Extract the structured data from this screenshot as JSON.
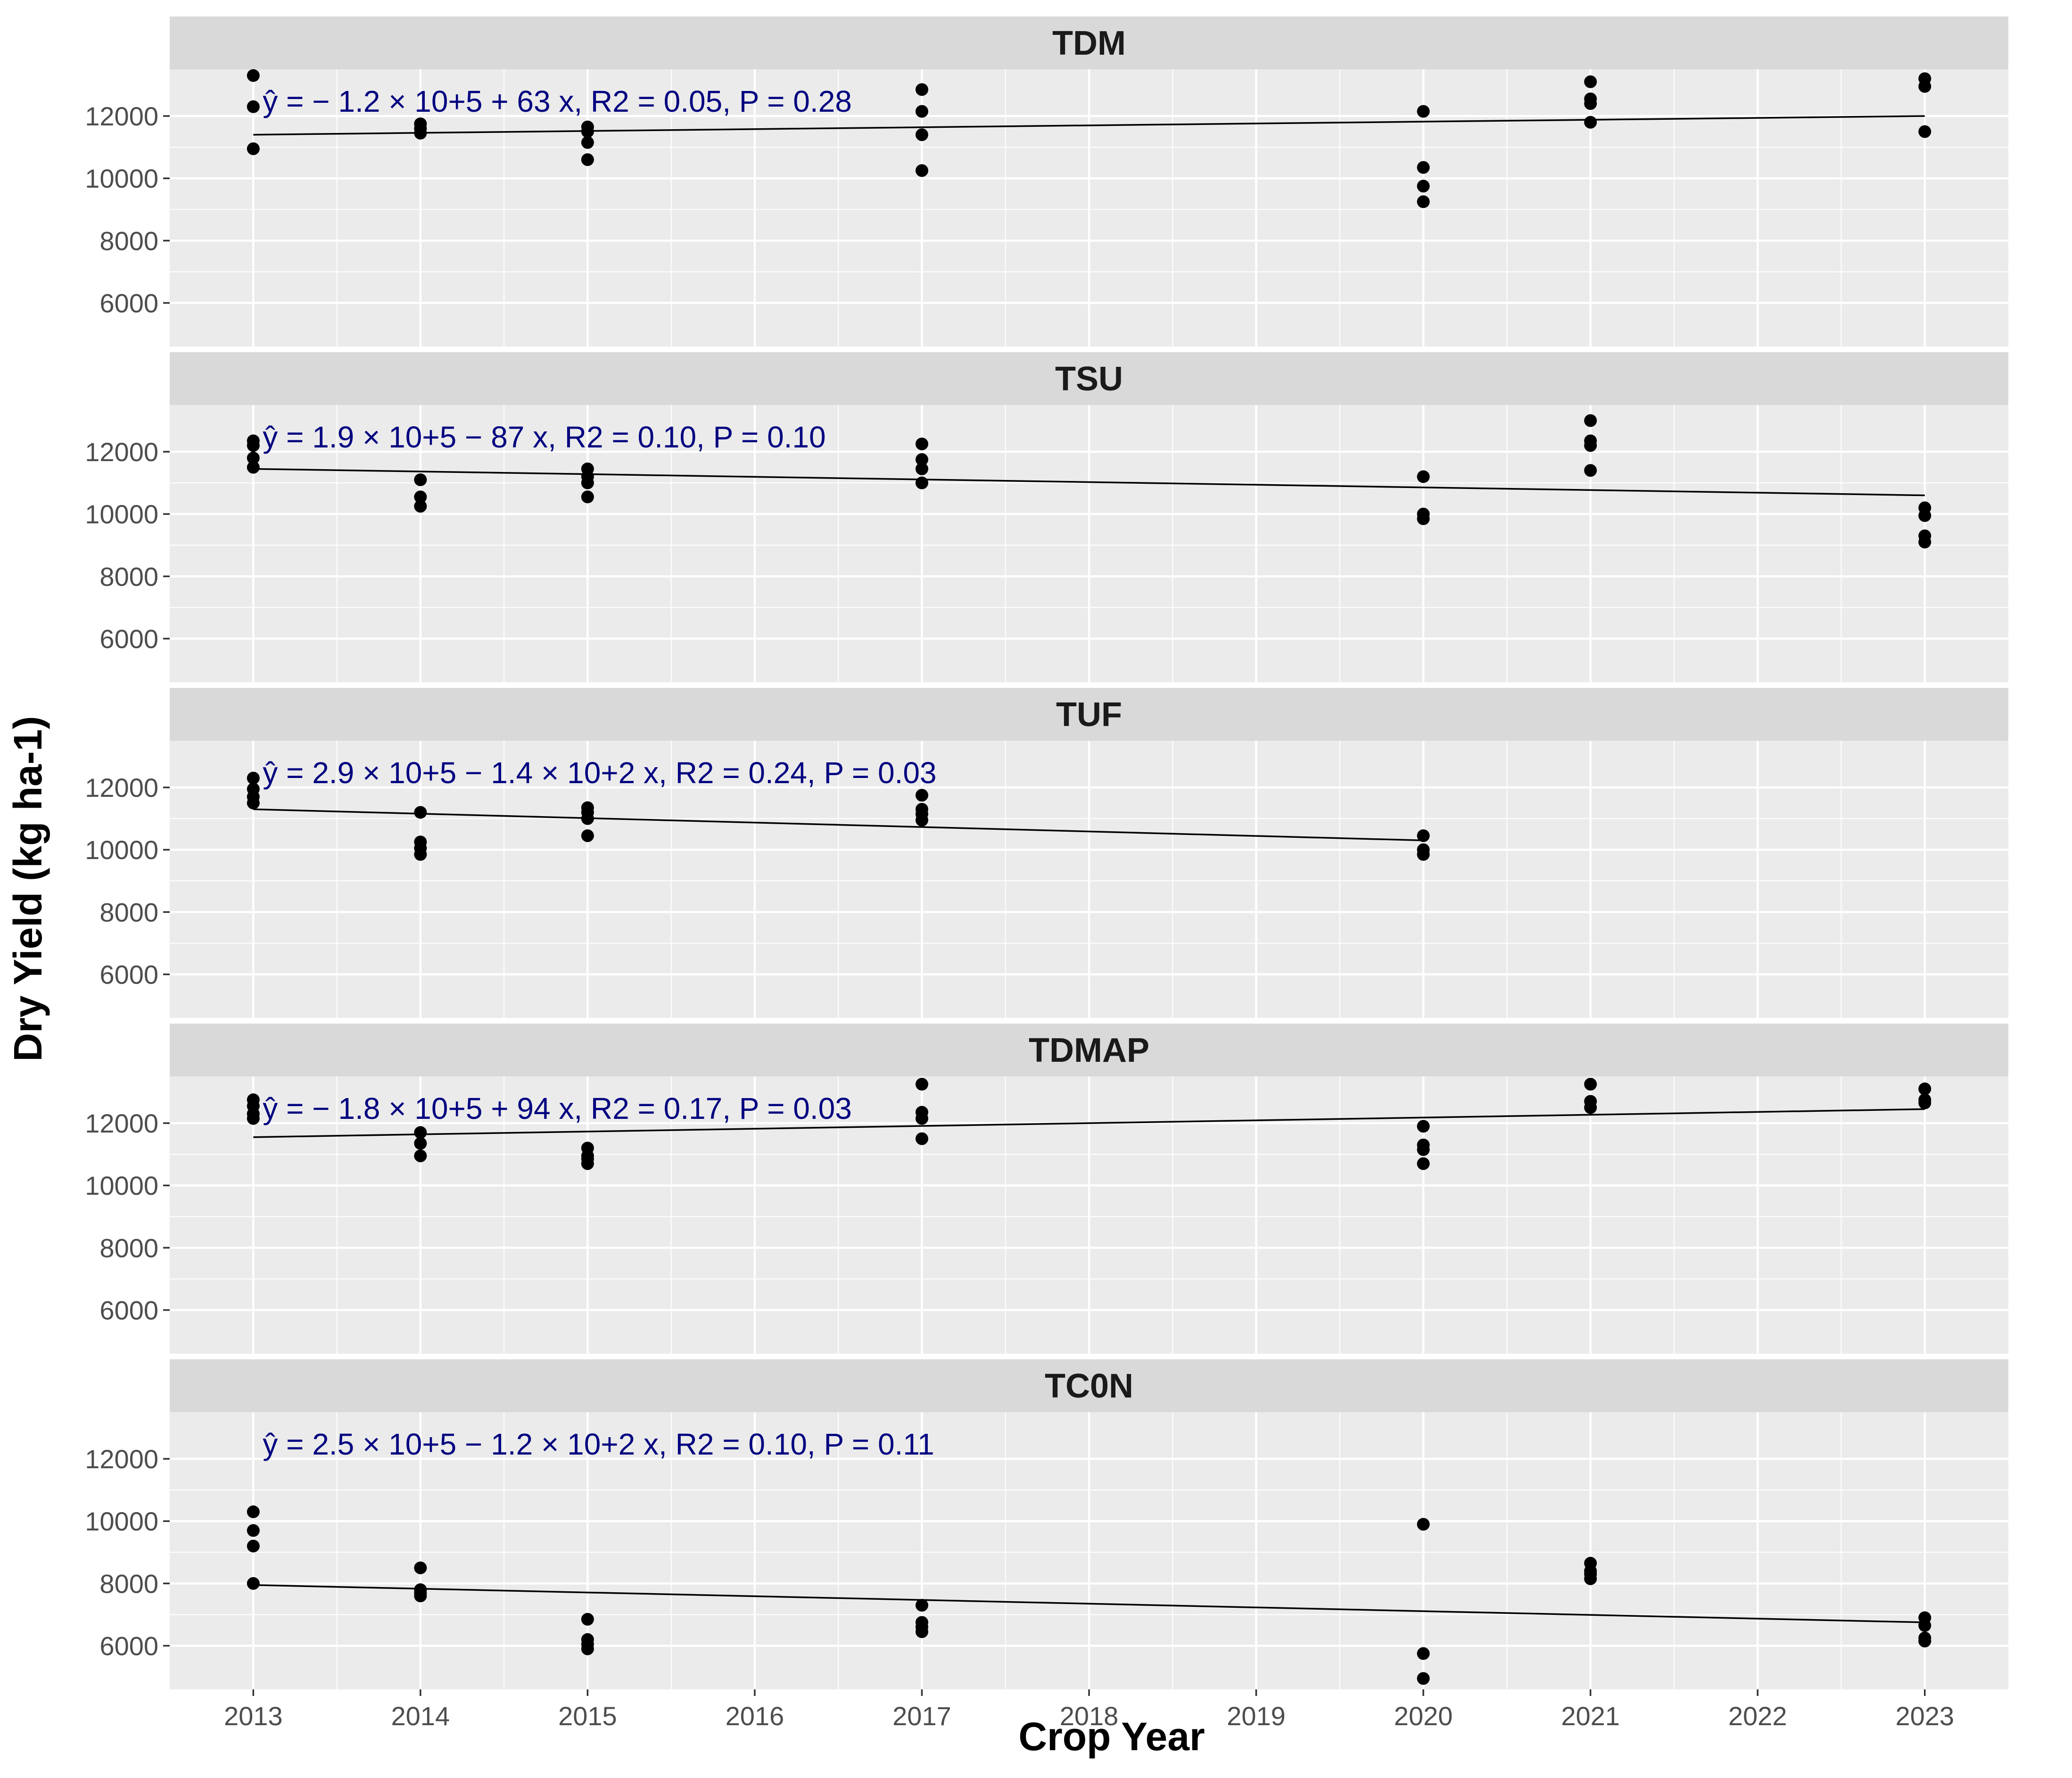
{
  "colors": {
    "panel_bg": "#EBEBEB",
    "strip_bg": "#D9D9D9",
    "grid": "#FFFFFF",
    "point": "#000000",
    "line": "#000000",
    "equation": "#000080"
  },
  "chart_data": {
    "type": "scatter",
    "layout": "faceted-vertical",
    "xlabel": "Crop Year",
    "ylabel": "Dry Yield (kg ha-1)",
    "xlim": [
      2012.5,
      2023.5
    ],
    "ylim": [
      4600,
      13500
    ],
    "x_ticks": [
      2013,
      2014,
      2015,
      2016,
      2017,
      2018,
      2019,
      2020,
      2021,
      2022,
      2023
    ],
    "x_tick_labels": [
      "2013",
      "2014",
      "2015",
      "2016",
      "2017",
      "2018",
      "2019",
      "2020",
      "2021",
      "2022",
      "2023"
    ],
    "y_ticks": [
      6000,
      8000,
      10000,
      12000
    ],
    "y_tick_labels": [
      "6000",
      "8000",
      "10000",
      "12000"
    ],
    "panels": [
      {
        "name": "TDM",
        "equation": "ŷ = − 1.2 × 10+5 + 63 x, R2 = 0.05, P = 0.28",
        "points": [
          {
            "x": 2013,
            "y": 13300
          },
          {
            "x": 2013,
            "y": 12300
          },
          {
            "x": 2013,
            "y": 10950
          },
          {
            "x": 2014,
            "y": 11750
          },
          {
            "x": 2014,
            "y": 11600
          },
          {
            "x": 2014,
            "y": 11450
          },
          {
            "x": 2015,
            "y": 11650
          },
          {
            "x": 2015,
            "y": 11500
          },
          {
            "x": 2015,
            "y": 11150
          },
          {
            "x": 2015,
            "y": 10600
          },
          {
            "x": 2017,
            "y": 12850
          },
          {
            "x": 2017,
            "y": 12150
          },
          {
            "x": 2017,
            "y": 11400
          },
          {
            "x": 2017,
            "y": 10250
          },
          {
            "x": 2020,
            "y": 12150
          },
          {
            "x": 2020,
            "y": 10350
          },
          {
            "x": 2020,
            "y": 9750
          },
          {
            "x": 2020,
            "y": 9250
          },
          {
            "x": 2021,
            "y": 13100
          },
          {
            "x": 2021,
            "y": 12550
          },
          {
            "x": 2021,
            "y": 12400
          },
          {
            "x": 2021,
            "y": 11800
          },
          {
            "x": 2023,
            "y": 13200
          },
          {
            "x": 2023,
            "y": 12950
          },
          {
            "x": 2023,
            "y": 11500
          }
        ],
        "fit": {
          "x": [
            2013,
            2023
          ],
          "y": [
            11400,
            12000
          ]
        }
      },
      {
        "name": "TSU",
        "equation": "ŷ = 1.9 × 10+5 − 87 x, R2 = 0.10, P = 0.10",
        "points": [
          {
            "x": 2013,
            "y": 12350
          },
          {
            "x": 2013,
            "y": 12200
          },
          {
            "x": 2013,
            "y": 11800
          },
          {
            "x": 2013,
            "y": 11500
          },
          {
            "x": 2014,
            "y": 11100
          },
          {
            "x": 2014,
            "y": 10550
          },
          {
            "x": 2014,
            "y": 10250
          },
          {
            "x": 2015,
            "y": 11450
          },
          {
            "x": 2015,
            "y": 11200
          },
          {
            "x": 2015,
            "y": 11000
          },
          {
            "x": 2015,
            "y": 10550
          },
          {
            "x": 2017,
            "y": 12250
          },
          {
            "x": 2017,
            "y": 11750
          },
          {
            "x": 2017,
            "y": 11450
          },
          {
            "x": 2017,
            "y": 11000
          },
          {
            "x": 2020,
            "y": 11200
          },
          {
            "x": 2020,
            "y": 10000
          },
          {
            "x": 2020,
            "y": 9850
          },
          {
            "x": 2021,
            "y": 13000
          },
          {
            "x": 2021,
            "y": 12350
          },
          {
            "x": 2021,
            "y": 12200
          },
          {
            "x": 2021,
            "y": 11400
          },
          {
            "x": 2023,
            "y": 10200
          },
          {
            "x": 2023,
            "y": 9950
          },
          {
            "x": 2023,
            "y": 9300
          },
          {
            "x": 2023,
            "y": 9100
          }
        ],
        "fit": {
          "x": [
            2013,
            2023
          ],
          "y": [
            11450,
            10600
          ]
        }
      },
      {
        "name": "TUF",
        "equation": "ŷ = 2.9 × 10+5 − 1.4 × 10+2 x, R2 = 0.24, P = 0.03",
        "points": [
          {
            "x": 2013,
            "y": 12300
          },
          {
            "x": 2013,
            "y": 11950
          },
          {
            "x": 2013,
            "y": 11700
          },
          {
            "x": 2013,
            "y": 11500
          },
          {
            "x": 2014,
            "y": 11200
          },
          {
            "x": 2014,
            "y": 10250
          },
          {
            "x": 2014,
            "y": 10050
          },
          {
            "x": 2014,
            "y": 9850
          },
          {
            "x": 2015,
            "y": 11350
          },
          {
            "x": 2015,
            "y": 11200
          },
          {
            "x": 2015,
            "y": 11000
          },
          {
            "x": 2015,
            "y": 10450
          },
          {
            "x": 2017,
            "y": 11750
          },
          {
            "x": 2017,
            "y": 11300
          },
          {
            "x": 2017,
            "y": 11150
          },
          {
            "x": 2017,
            "y": 10950
          },
          {
            "x": 2020,
            "y": 10450
          },
          {
            "x": 2020,
            "y": 10000
          },
          {
            "x": 2020,
            "y": 9850
          }
        ],
        "fit": {
          "x": [
            2013,
            2020
          ],
          "y": [
            11300,
            10300
          ]
        }
      },
      {
        "name": "TDMAP",
        "equation": "ŷ = − 1.8 × 10+5 + 94 x, R2 = 0.17, P = 0.03",
        "points": [
          {
            "x": 2013,
            "y": 12750
          },
          {
            "x": 2013,
            "y": 12550
          },
          {
            "x": 2013,
            "y": 12300
          },
          {
            "x": 2013,
            "y": 12150
          },
          {
            "x": 2014,
            "y": 11700
          },
          {
            "x": 2014,
            "y": 11350
          },
          {
            "x": 2014,
            "y": 10950
          },
          {
            "x": 2015,
            "y": 11200
          },
          {
            "x": 2015,
            "y": 10950
          },
          {
            "x": 2015,
            "y": 10850
          },
          {
            "x": 2015,
            "y": 10700
          },
          {
            "x": 2017,
            "y": 13250
          },
          {
            "x": 2017,
            "y": 12350
          },
          {
            "x": 2017,
            "y": 12150
          },
          {
            "x": 2017,
            "y": 11500
          },
          {
            "x": 2020,
            "y": 11900
          },
          {
            "x": 2020,
            "y": 11300
          },
          {
            "x": 2020,
            "y": 11150
          },
          {
            "x": 2020,
            "y": 10700
          },
          {
            "x": 2021,
            "y": 13250
          },
          {
            "x": 2021,
            "y": 12700
          },
          {
            "x": 2021,
            "y": 12500
          },
          {
            "x": 2023,
            "y": 13100
          },
          {
            "x": 2023,
            "y": 12750
          },
          {
            "x": 2023,
            "y": 12650
          }
        ],
        "fit": {
          "x": [
            2013,
            2023
          ],
          "y": [
            11550,
            12450
          ]
        }
      },
      {
        "name": "TC0N",
        "equation": "ŷ = 2.5 × 10+5 − 1.2 × 10+2 x, R2 = 0.10, P = 0.11",
        "points": [
          {
            "x": 2013,
            "y": 10300
          },
          {
            "x": 2013,
            "y": 9700
          },
          {
            "x": 2013,
            "y": 9200
          },
          {
            "x": 2013,
            "y": 8000
          },
          {
            "x": 2014,
            "y": 8500
          },
          {
            "x": 2014,
            "y": 7800
          },
          {
            "x": 2014,
            "y": 7700
          },
          {
            "x": 2014,
            "y": 7600
          },
          {
            "x": 2015,
            "y": 6850
          },
          {
            "x": 2015,
            "y": 6200
          },
          {
            "x": 2015,
            "y": 6050
          },
          {
            "x": 2015,
            "y": 5900
          },
          {
            "x": 2017,
            "y": 7300
          },
          {
            "x": 2017,
            "y": 6750
          },
          {
            "x": 2017,
            "y": 6600
          },
          {
            "x": 2017,
            "y": 6450
          },
          {
            "x": 2020,
            "y": 9900
          },
          {
            "x": 2020,
            "y": 5750
          },
          {
            "x": 2020,
            "y": 4950
          },
          {
            "x": 2021,
            "y": 8650
          },
          {
            "x": 2021,
            "y": 8400
          },
          {
            "x": 2021,
            "y": 8300
          },
          {
            "x": 2021,
            "y": 8150
          },
          {
            "x": 2023,
            "y": 6900
          },
          {
            "x": 2023,
            "y": 6650
          },
          {
            "x": 2023,
            "y": 6250
          },
          {
            "x": 2023,
            "y": 6150
          }
        ],
        "fit": {
          "x": [
            2013,
            2023
          ],
          "y": [
            7950,
            6750
          ]
        }
      }
    ]
  }
}
